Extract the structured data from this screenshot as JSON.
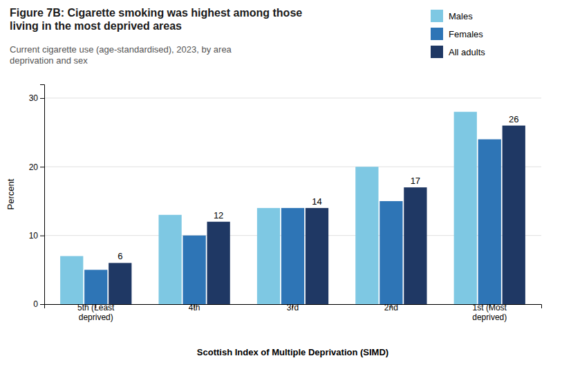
{
  "chart_data": {
    "type": "bar",
    "title": "Figure 7B: Cigarette smoking was highest among those\nliving in the most deprived areas",
    "subtitle": "Current cigarette use (age-standardised), 2023, by area\ndeprivation and sex",
    "xlabel": "Scottish Index of Multiple Deprivation (SIMD)",
    "ylabel": "Percent",
    "categories": [
      "5th (Least\ndeprived)",
      "4th",
      "3rd",
      "2nd",
      "1st (Most\ndeprived)"
    ],
    "series": [
      {
        "name": "Males",
        "color": "#7ec8e3",
        "values": [
          7,
          13,
          14,
          20,
          28
        ]
      },
      {
        "name": "Females",
        "color": "#2e75b6",
        "values": [
          5,
          10,
          14,
          15,
          24
        ]
      },
      {
        "name": "All adults",
        "color": "#1f3864",
        "values": [
          6,
          12,
          14,
          17,
          26
        ],
        "data_labels": true
      }
    ],
    "ylim": [
      0,
      32
    ],
    "yticks": [
      0,
      10,
      20,
      30
    ],
    "grid": true,
    "legend": "upper right"
  }
}
